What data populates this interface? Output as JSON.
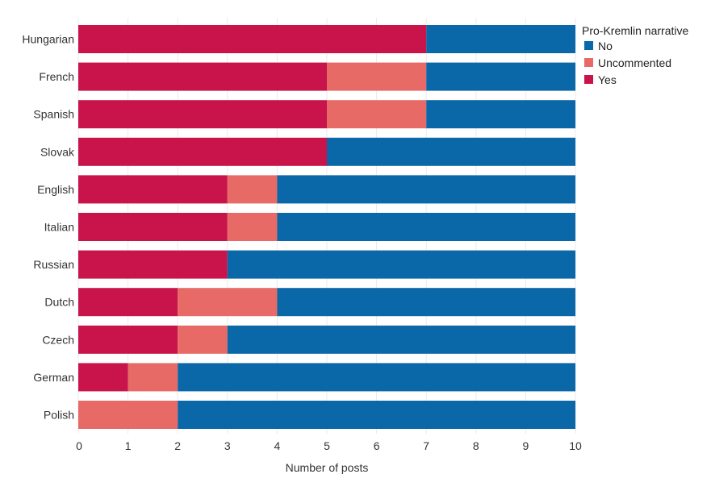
{
  "chart_data": {
    "type": "bar",
    "orientation": "horizontal",
    "stacked": true,
    "categories": [
      "Hungarian",
      "French",
      "Spanish",
      "Slovak",
      "English",
      "Italian",
      "Russian",
      "Dutch",
      "Czech",
      "German",
      "Polish"
    ],
    "series": [
      {
        "name": "Yes",
        "color": "#c8144b",
        "values": [
          7,
          5,
          5,
          5,
          3,
          3,
          3,
          2,
          2,
          1,
          0
        ]
      },
      {
        "name": "Uncommented",
        "color": "#e76a66",
        "values": [
          0,
          2,
          2,
          0,
          1,
          1,
          0,
          2,
          1,
          1,
          2
        ]
      },
      {
        "name": "No",
        "color": "#0a67a8",
        "values": [
          3,
          3,
          3,
          5,
          6,
          6,
          7,
          6,
          7,
          8,
          8
        ]
      }
    ],
    "xlabel": "Number of posts",
    "ylabel": "",
    "xlim": [
      0,
      10
    ],
    "xticks": [
      "0",
      "1",
      "2",
      "3",
      "4",
      "5",
      "6",
      "7",
      "8",
      "9",
      "10"
    ],
    "grid": true,
    "legend": {
      "title": "Pro-Kremlin narrative",
      "placement": "top-right",
      "entries": [
        {
          "label": "No",
          "color": "#0a67a8"
        },
        {
          "label": "Uncommented",
          "color": "#e76a66"
        },
        {
          "label": "Yes",
          "color": "#c8144b"
        }
      ]
    }
  }
}
